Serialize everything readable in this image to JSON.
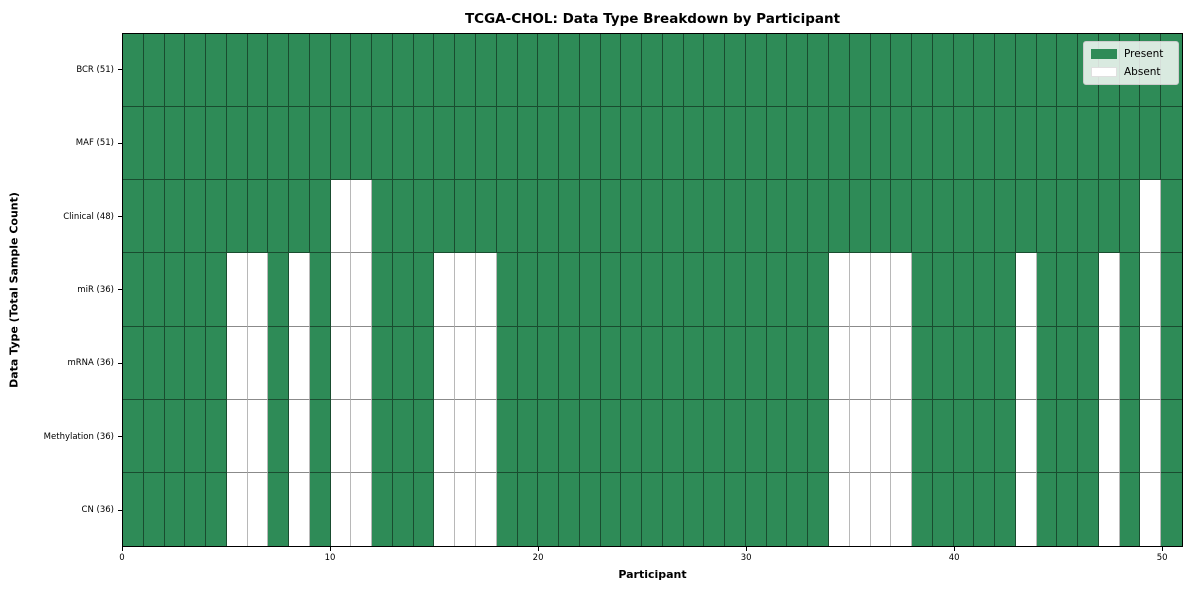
{
  "chart_data": {
    "type": "heatmap",
    "title": "TCGA-CHOL: Data Type Breakdown by Participant",
    "xlabel": "Participant",
    "ylabel": "Data Type (Total Sample Count)",
    "n_participants": 51,
    "x_ticks": [
      0,
      10,
      20,
      30,
      40,
      50
    ],
    "cell_states": [
      "Present",
      "Absent"
    ],
    "legend": [
      {
        "label": "Present",
        "color": "#2e8b57"
      },
      {
        "label": "Absent",
        "color": "#ffffff"
      }
    ],
    "legend_position": "upper right",
    "grid": true,
    "rows": [
      {
        "label": "BCR (51)",
        "data_type": "BCR",
        "present_count": 51,
        "absent_participants": []
      },
      {
        "label": "MAF (51)",
        "data_type": "MAF",
        "present_count": 51,
        "absent_participants": []
      },
      {
        "label": "Clinical (48)",
        "data_type": "Clinical",
        "present_count": 48,
        "absent_participants": [
          10,
          11,
          49
        ]
      },
      {
        "label": "miR (36)",
        "data_type": "miR",
        "present_count": 36,
        "absent_participants": [
          5,
          6,
          8,
          10,
          11,
          15,
          16,
          17,
          34,
          35,
          36,
          37,
          43,
          47,
          49
        ]
      },
      {
        "label": "mRNA (36)",
        "data_type": "mRNA",
        "present_count": 36,
        "absent_participants": [
          5,
          6,
          8,
          10,
          11,
          15,
          16,
          17,
          34,
          35,
          36,
          37,
          43,
          47,
          49
        ]
      },
      {
        "label": "Methylation (36)",
        "data_type": "Methylation",
        "present_count": 36,
        "absent_participants": [
          5,
          6,
          8,
          10,
          11,
          15,
          16,
          17,
          34,
          35,
          36,
          37,
          43,
          47,
          49
        ]
      },
      {
        "label": "CN (36)",
        "data_type": "CN",
        "present_count": 36,
        "absent_participants": [
          5,
          6,
          8,
          10,
          11,
          15,
          16,
          17,
          34,
          35,
          36,
          37,
          43,
          47,
          49
        ]
      }
    ],
    "colors": {
      "present": "#2e8b57",
      "absent": "#ffffff",
      "grid_line": "rgba(0,0,0,0.45)",
      "spine": "#000000"
    }
  }
}
